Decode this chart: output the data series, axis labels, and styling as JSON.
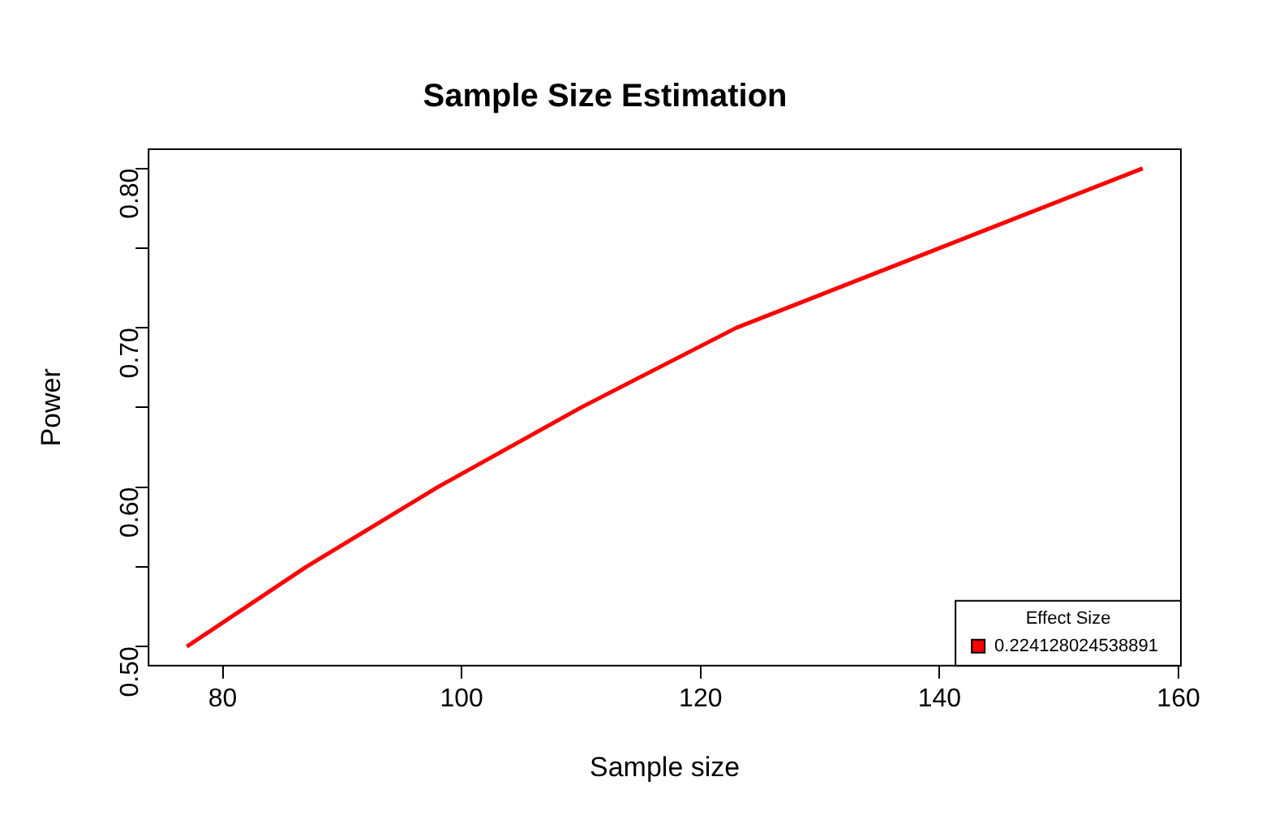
{
  "chart_data": {
    "type": "line",
    "title": "Sample Size Estimation",
    "xlabel": "Sample size",
    "ylabel": "Power",
    "legend_title": "Effect Size",
    "x": [
      77,
      87,
      98,
      110,
      123,
      140,
      157
    ],
    "series": [
      {
        "name": "0.224128024538891",
        "color": "#ff0000",
        "values": [
          0.5,
          0.55,
          0.6,
          0.65,
          0.7,
          0.75,
          0.8
        ]
      }
    ],
    "xlim": [
      73.8,
      160.2
    ],
    "xticks": [
      80,
      100,
      120,
      140,
      160
    ],
    "ylim": [
      0.488,
      0.812
    ],
    "yticks": [
      {
        "value": 0.5,
        "label": "0.50"
      },
      {
        "value": 0.55,
        "label": null
      },
      {
        "value": 0.6,
        "label": "0.60"
      },
      {
        "value": 0.65,
        "label": null
      },
      {
        "value": 0.7,
        "label": "0.70"
      },
      {
        "value": 0.75,
        "label": null
      },
      {
        "value": 0.8,
        "label": "0.80"
      }
    ],
    "grid": false,
    "legend": "bottom right",
    "marker": "none",
    "line_style": "solid"
  }
}
